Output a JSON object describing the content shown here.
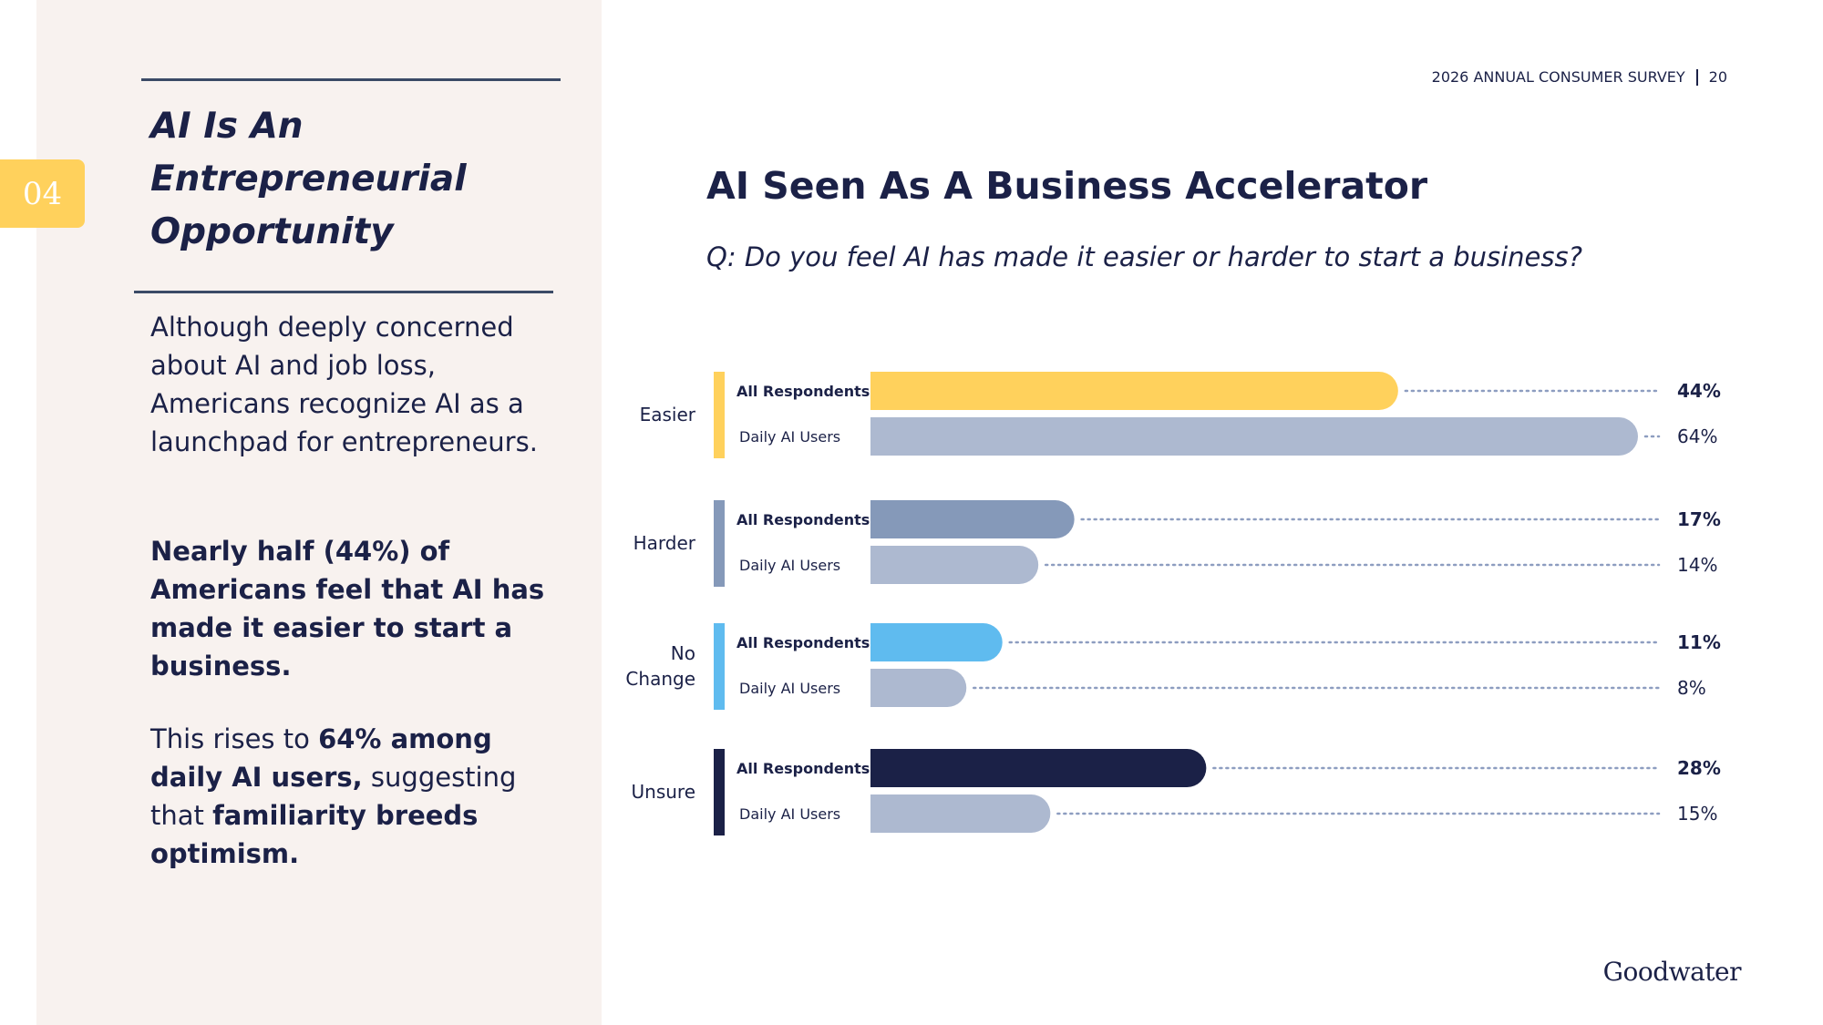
{
  "header": {
    "survey": "2026 ANNUAL CONSUMER SURVEY",
    "page": "20"
  },
  "sidebar": {
    "section_number": "04",
    "title": "AI Is An Entrepreneurial Opportunity",
    "intro": "Although deeply concerned about AI and job loss, Americans recognize AI as a launchpad for entrepreneurs.",
    "highlight": "Nearly half (44%) of Americans feel that AI has made it easier to start a business.",
    "rise_prefix": "This rises to ",
    "rise_bold": "64% among daily AI users,",
    "rise_mid": " suggesting that ",
    "rise_bold2": "familiarity breeds optimism."
  },
  "main": {
    "title": "AI Seen As A Business Accelerator",
    "question": "Q: Do you feel AI has made it easier or harder to start a business?"
  },
  "brand": "Goodwater",
  "colors": {
    "easier": "#ffd15c",
    "harder": "#8599b9",
    "no_change": "#5fbbef",
    "unsure": "#1b2147",
    "daily": "#adb9d0",
    "dots": "#8d9dc0"
  },
  "chart_data": {
    "type": "bar",
    "orientation": "horizontal",
    "categories": [
      "Easier",
      "Harder",
      "No Change",
      "Unsure"
    ],
    "series": [
      {
        "name": "All Respondents",
        "values": [
          44,
          17,
          11,
          28
        ],
        "value_labels": [
          "44%",
          "17%",
          "11%",
          "28%"
        ]
      },
      {
        "name": "Daily AI Users",
        "values": [
          64,
          14,
          8,
          15
        ],
        "value_labels": [
          "64%",
          "14%",
          "8%",
          "15%"
        ]
      }
    ],
    "unit": "%",
    "xlim": [
      0,
      64
    ],
    "grid": false,
    "legend": "inline"
  }
}
